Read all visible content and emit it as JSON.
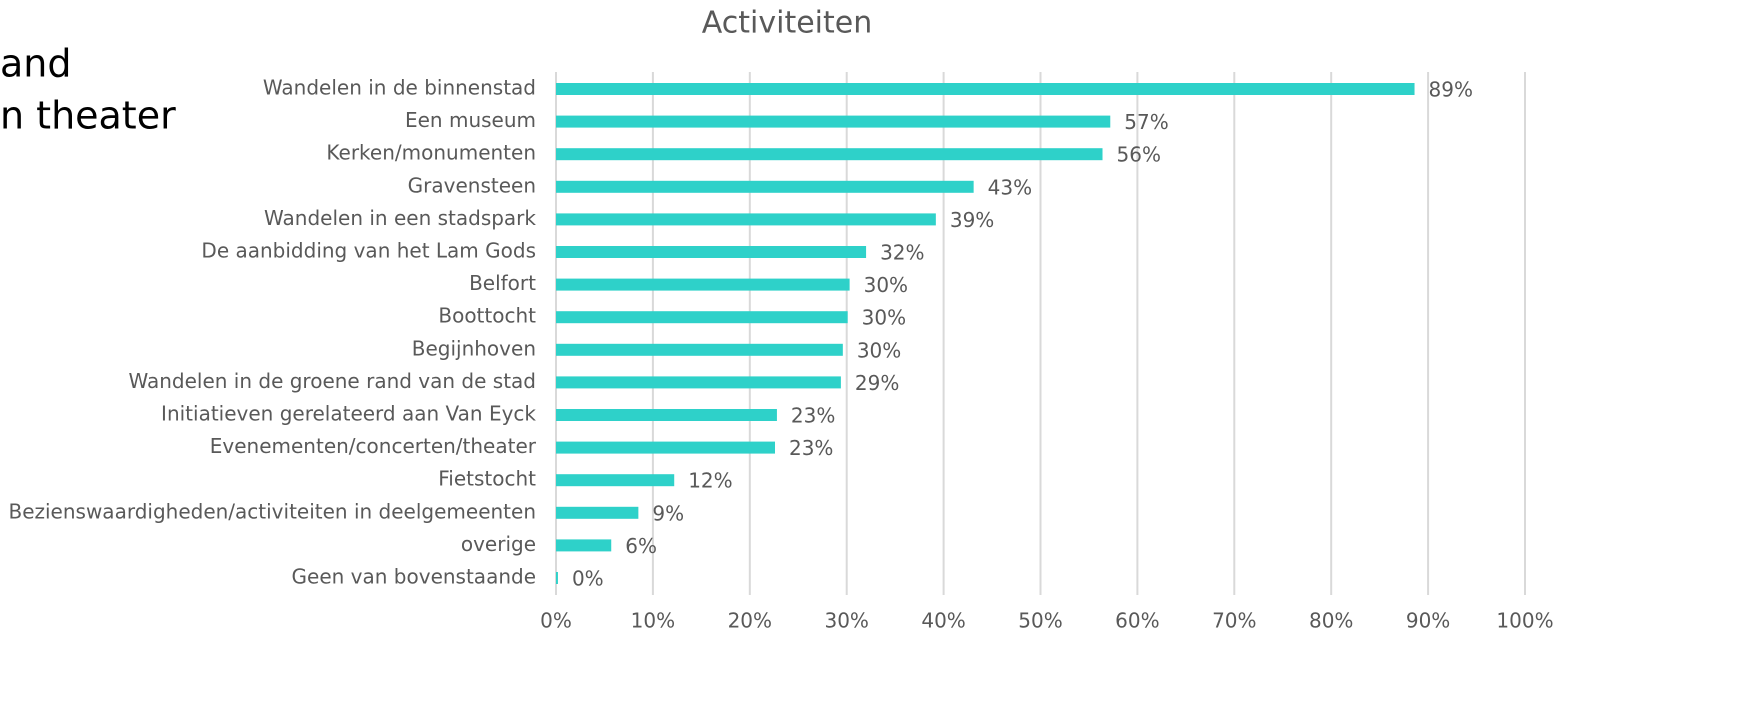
{
  "side_text": [
    "and",
    "n theater"
  ],
  "chart_data": {
    "type": "barh",
    "title": "Activiteiten",
    "categories": [
      "Wandelen in de binnenstad",
      "Een museum",
      "Kerken/monumenten",
      "Gravensteen",
      "Wandelen in een stadspark",
      "De aanbidding van het Lam Gods",
      "Belfort",
      "Boottocht",
      "Begijnhoven",
      "Wandelen in de groene rand van de stad",
      "Initiatieven gerelateerd aan Van Eyck",
      "Evenementen/concerten/theater",
      "Fietstocht",
      "Bezienswaardigheden/activiteiten in deelgemeenten",
      "overige",
      "Geen van bovenstaande"
    ],
    "values": [
      88.6,
      57.2,
      56.4,
      43.1,
      39.2,
      32.0,
      30.3,
      30.1,
      29.6,
      29.4,
      22.8,
      22.6,
      12.2,
      8.5,
      5.7,
      0.2
    ],
    "value_labels": [
      "89%",
      "57%",
      "56%",
      "43%",
      "39%",
      "32%",
      "30%",
      "30%",
      "30%",
      "29%",
      "23%",
      "23%",
      "12%",
      "9%",
      "6%",
      "0%"
    ],
    "color": "#2ed1c9",
    "xlim": [
      0,
      100
    ],
    "xticks": [
      {
        "value": 0,
        "label": "0%"
      },
      {
        "value": 10,
        "label": "10%"
      },
      {
        "value": 20,
        "label": "20%"
      },
      {
        "value": 30,
        "label": "30%"
      },
      {
        "value": 40,
        "label": "40%"
      },
      {
        "value": 50,
        "label": "50%"
      },
      {
        "value": 60,
        "label": "60%"
      },
      {
        "value": 70,
        "label": "70%"
      },
      {
        "value": 80,
        "label": "80%"
      },
      {
        "value": 90,
        "label": "90%"
      },
      {
        "value": 100,
        "label": "100%"
      }
    ],
    "grid": true
  }
}
